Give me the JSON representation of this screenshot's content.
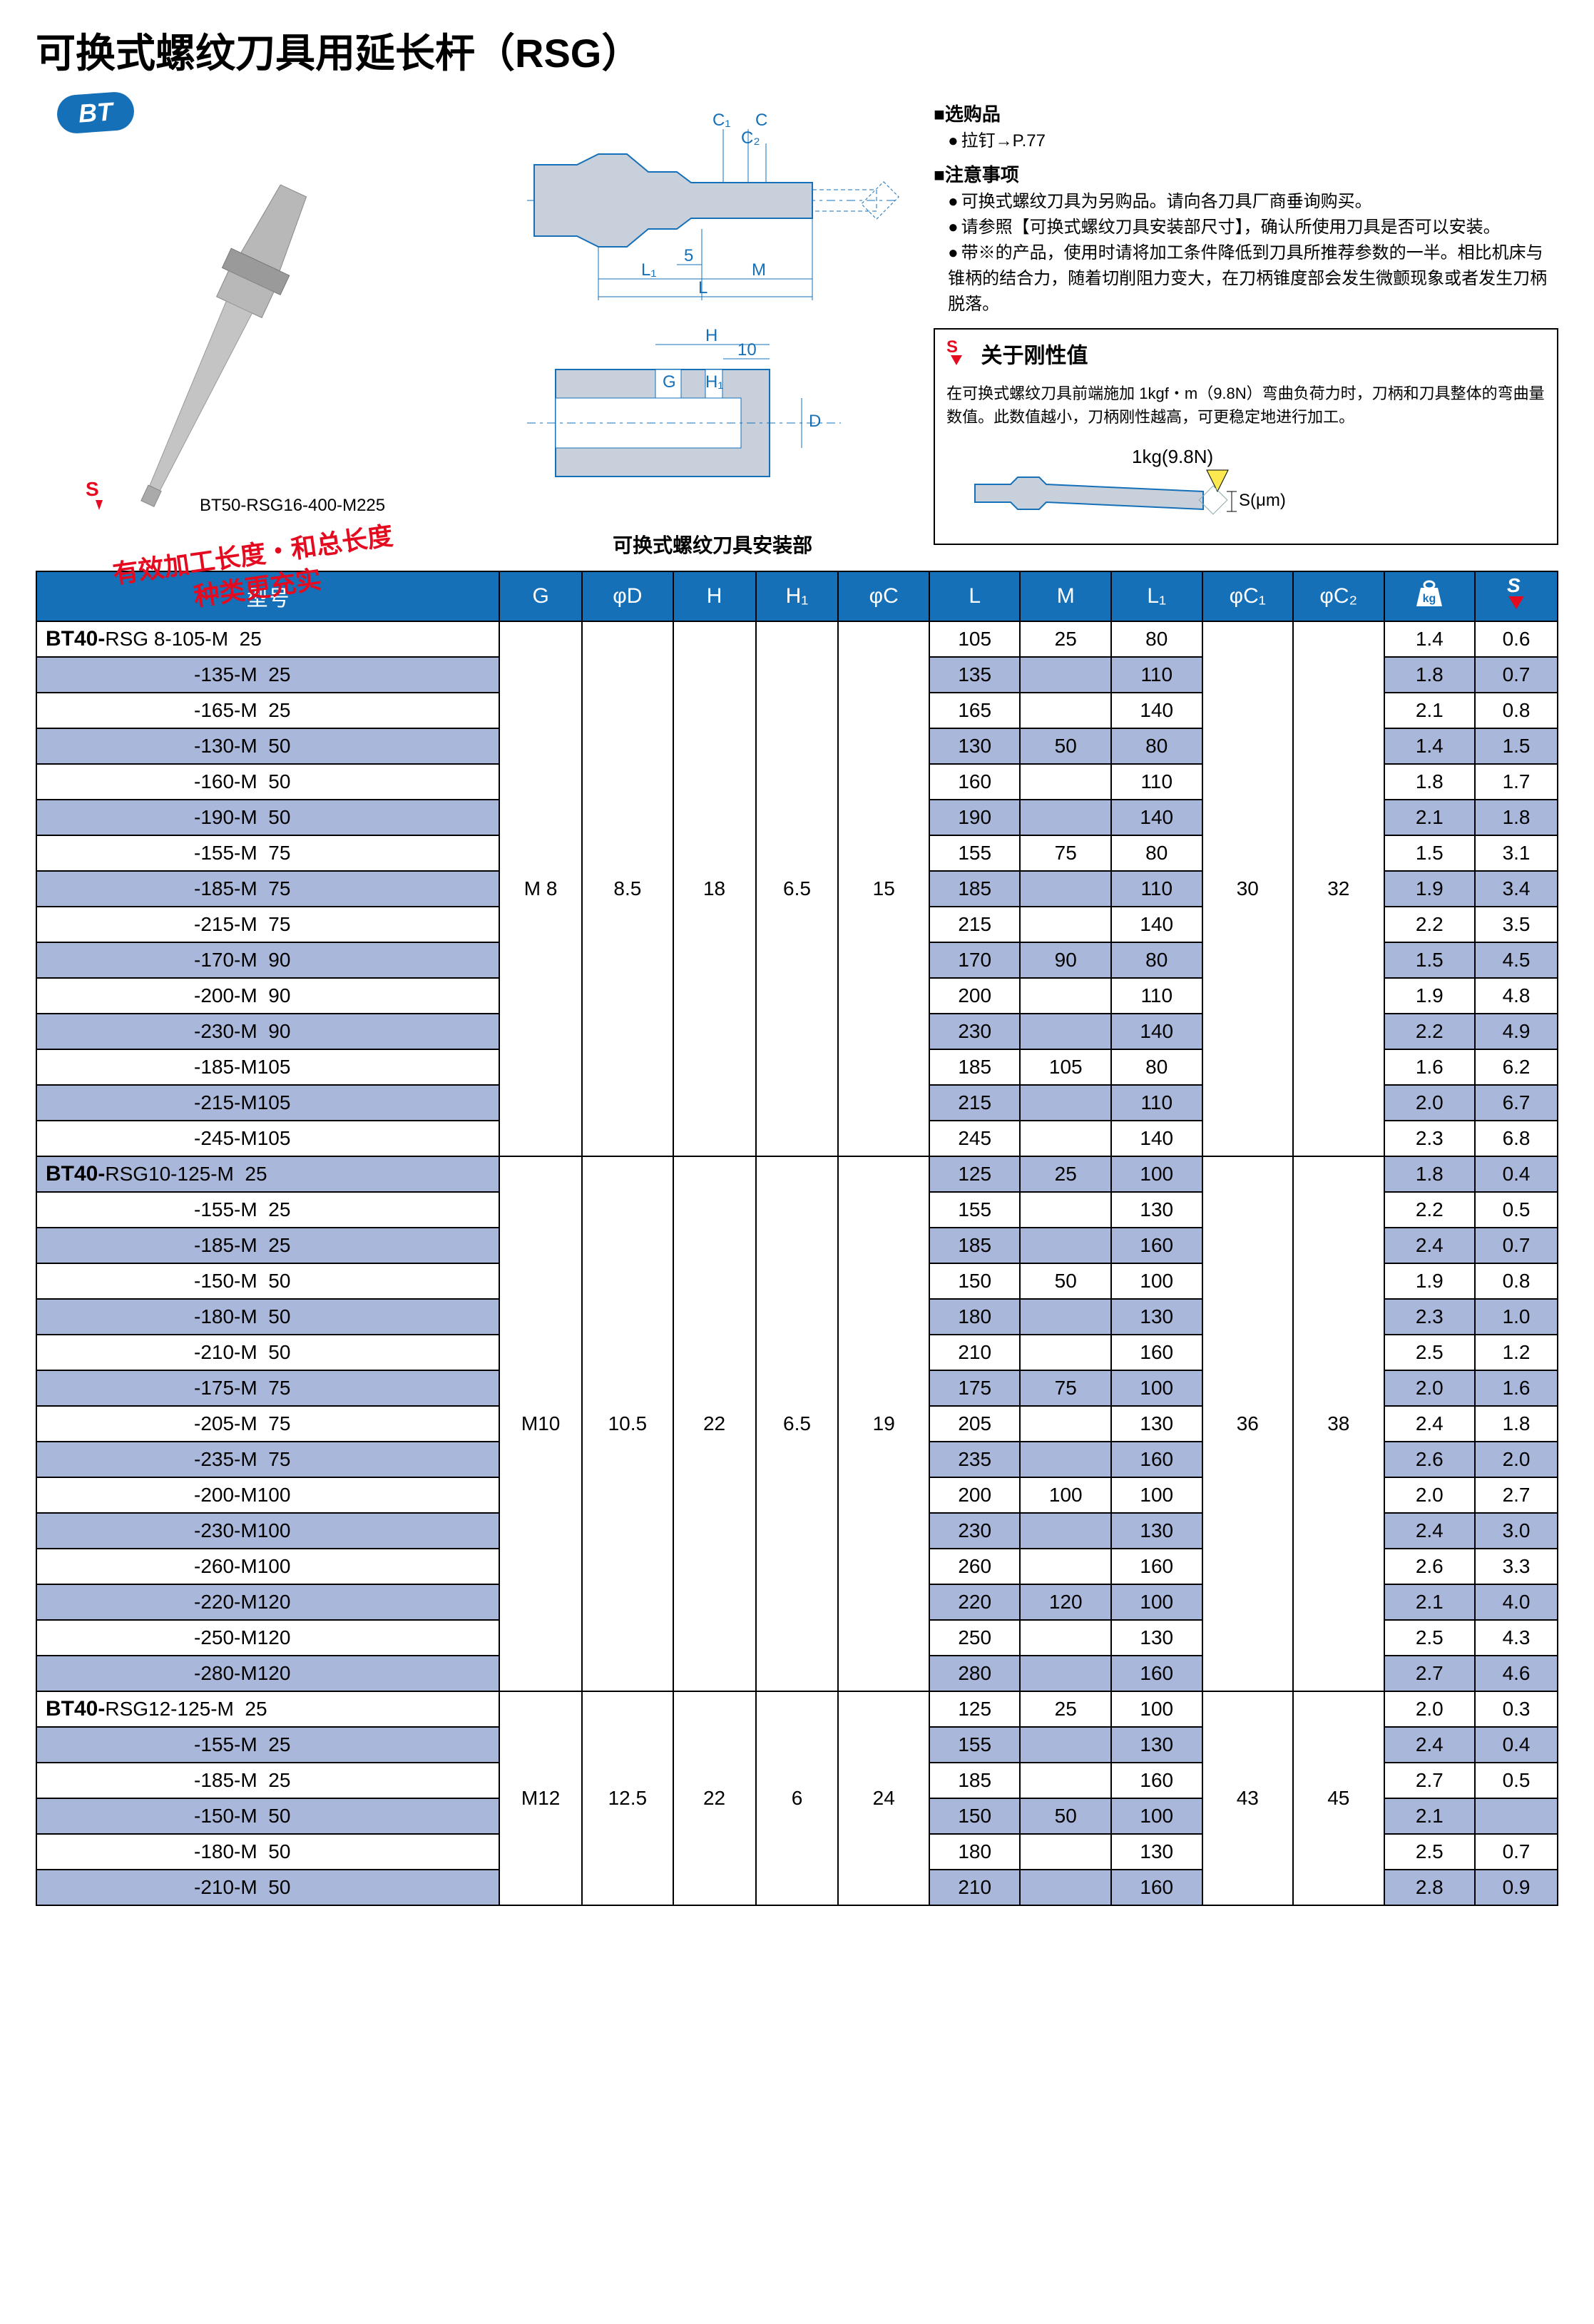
{
  "title": "可换式螺纹刀具用延长杆（RSG）",
  "bt_badge": "BT",
  "photo_label": "BT50-RSG16-400-M225",
  "red_stamp_line1": "有效加工长度・和总长度",
  "red_stamp_line2": "种类更充实",
  "mount_label": "可换式螺纹刀具安装部",
  "opt_title": "■选购品",
  "opt_item": "拉钉→P.77",
  "note_title": "■注意事项",
  "notes": [
    "可换式螺纹刀具为另购品。请向各刀具厂商垂询购买。",
    "请参照【可换式螺纹刀具安装部尺寸】，确认所使用刀具是否可以安装。",
    "带※的产品，使用时请将加工条件降低到刀具所推荐参数的一半。相比机床与锥柄的结合力，随着切削阻力变大，在刀柄锥度部会发生微颤现象或者发生刀柄脱落。"
  ],
  "rigidity_title": "关于刚性值",
  "rigidity_text": "在可换式螺纹刀具前端施加 1kgf・m（9.8N）弯曲负荷力时，刀柄和刀具整体的弯曲量数值。此数值越小，刀柄刚性越高，可更稳定地进行加工。",
  "rigidity_force": "1kg(9.8N)",
  "rigidity_s": "S(μm)",
  "diagram_labels": {
    "C1": "C₁",
    "C": "C",
    "C2": "C₂",
    "five": "5",
    "L1": "L₁",
    "M": "M",
    "L": "L",
    "H": "H",
    "ten": "10",
    "G": "G",
    "H1": "H₁",
    "D": "D"
  },
  "headers": [
    "型号",
    "G",
    "φD",
    "H",
    "H₁",
    "φC",
    "L",
    "M",
    "L₁",
    "φC₁",
    "φC₂",
    "kg",
    "S"
  ],
  "colors": {
    "header_bg": "#1570b8",
    "stripe_bg": "#a9b8da",
    "accent_red": "#e40b20"
  },
  "groups": [
    {
      "prefix": "BT40-",
      "base": "RSG 8",
      "common": {
        "G": "M 8",
        "phiD": "8.5",
        "H": "18",
        "H1": "6.5",
        "phiC": "15",
        "phiC1": "30",
        "phiC2": "32"
      },
      "rows": [
        {
          "model": "-105-M  25",
          "L": "105",
          "M": "25",
          "L1": "80",
          "kg": "1.4",
          "S": "0.6",
          "first": true
        },
        {
          "model": "-135-M  25",
          "L": "135",
          "M": "",
          "L1": "110",
          "kg": "1.8",
          "S": "0.7"
        },
        {
          "model": "-165-M  25",
          "L": "165",
          "M": "",
          "L1": "140",
          "kg": "2.1",
          "S": "0.8"
        },
        {
          "model": "-130-M  50",
          "L": "130",
          "M": "50",
          "L1": "80",
          "kg": "1.4",
          "S": "1.5"
        },
        {
          "model": "-160-M  50",
          "L": "160",
          "M": "",
          "L1": "110",
          "kg": "1.8",
          "S": "1.7"
        },
        {
          "model": "-190-M  50",
          "L": "190",
          "M": "",
          "L1": "140",
          "kg": "2.1",
          "S": "1.8"
        },
        {
          "model": "-155-M  75",
          "L": "155",
          "M": "75",
          "L1": "80",
          "kg": "1.5",
          "S": "3.1"
        },
        {
          "model": "-185-M  75",
          "L": "185",
          "M": "",
          "L1": "110",
          "kg": "1.9",
          "S": "3.4"
        },
        {
          "model": "-215-M  75",
          "L": "215",
          "M": "",
          "L1": "140",
          "kg": "2.2",
          "S": "3.5"
        },
        {
          "model": "-170-M  90",
          "L": "170",
          "M": "90",
          "L1": "80",
          "kg": "1.5",
          "S": "4.5"
        },
        {
          "model": "-200-M  90",
          "L": "200",
          "M": "",
          "L1": "110",
          "kg": "1.9",
          "S": "4.8"
        },
        {
          "model": "-230-M  90",
          "L": "230",
          "M": "",
          "L1": "140",
          "kg": "2.2",
          "S": "4.9"
        },
        {
          "model": "-185-M105",
          "L": "185",
          "M": "105",
          "L1": "80",
          "kg": "1.6",
          "S": "6.2"
        },
        {
          "model": "-215-M105",
          "L": "215",
          "M": "",
          "L1": "110",
          "kg": "2.0",
          "S": "6.7"
        },
        {
          "model": "-245-M105",
          "L": "245",
          "M": "",
          "L1": "140",
          "kg": "2.3",
          "S": "6.8"
        }
      ]
    },
    {
      "prefix": "BT40-",
      "base": "RSG10",
      "common": {
        "G": "M10",
        "phiD": "10.5",
        "H": "22",
        "H1": "6.5",
        "phiC": "19",
        "phiC1": "36",
        "phiC2": "38"
      },
      "rows": [
        {
          "model": "-125-M  25",
          "L": "125",
          "M": "25",
          "L1": "100",
          "kg": "1.8",
          "S": "0.4",
          "first": true
        },
        {
          "model": "-155-M  25",
          "L": "155",
          "M": "",
          "L1": "130",
          "kg": "2.2",
          "S": "0.5"
        },
        {
          "model": "-185-M  25",
          "L": "185",
          "M": "",
          "L1": "160",
          "kg": "2.4",
          "S": "0.7"
        },
        {
          "model": "-150-M  50",
          "L": "150",
          "M": "50",
          "L1": "100",
          "kg": "1.9",
          "S": "0.8"
        },
        {
          "model": "-180-M  50",
          "L": "180",
          "M": "",
          "L1": "130",
          "kg": "2.3",
          "S": "1.0"
        },
        {
          "model": "-210-M  50",
          "L": "210",
          "M": "",
          "L1": "160",
          "kg": "2.5",
          "S": "1.2"
        },
        {
          "model": "-175-M  75",
          "L": "175",
          "M": "75",
          "L1": "100",
          "kg": "2.0",
          "S": "1.6"
        },
        {
          "model": "-205-M  75",
          "L": "205",
          "M": "",
          "L1": "130",
          "kg": "2.4",
          "S": "1.8"
        },
        {
          "model": "-235-M  75",
          "L": "235",
          "M": "",
          "L1": "160",
          "kg": "2.6",
          "S": "2.0"
        },
        {
          "model": "-200-M100",
          "L": "200",
          "M": "100",
          "L1": "100",
          "kg": "2.0",
          "S": "2.7"
        },
        {
          "model": "-230-M100",
          "L": "230",
          "M": "",
          "L1": "130",
          "kg": "2.4",
          "S": "3.0"
        },
        {
          "model": "-260-M100",
          "L": "260",
          "M": "",
          "L1": "160",
          "kg": "2.6",
          "S": "3.3"
        },
        {
          "model": "-220-M120",
          "L": "220",
          "M": "120",
          "L1": "100",
          "kg": "2.1",
          "S": "4.0"
        },
        {
          "model": "-250-M120",
          "L": "250",
          "M": "",
          "L1": "130",
          "kg": "2.5",
          "S": "4.3"
        },
        {
          "model": "-280-M120",
          "L": "280",
          "M": "",
          "L1": "160",
          "kg": "2.7",
          "S": "4.6"
        }
      ]
    },
    {
      "prefix": "BT40-",
      "base": "RSG12",
      "common": {
        "G": "M12",
        "phiD": "12.5",
        "H": "22",
        "H1": "6",
        "phiC": "24",
        "phiC1": "43",
        "phiC2": "45"
      },
      "rows": [
        {
          "model": "-125-M  25",
          "L": "125",
          "M": "25",
          "L1": "100",
          "kg": "2.0",
          "S": "0.3",
          "first": true
        },
        {
          "model": "-155-M  25",
          "L": "155",
          "M": "",
          "L1": "130",
          "kg": "2.4",
          "S": "0.4"
        },
        {
          "model": "-185-M  25",
          "L": "185",
          "M": "",
          "L1": "160",
          "kg": "2.7",
          "S": "0.5"
        },
        {
          "model": "-150-M  50",
          "L": "150",
          "M": "50",
          "L1": "100",
          "kg": "2.1",
          "S": ""
        },
        {
          "model": "-180-M  50",
          "L": "180",
          "M": "",
          "L1": "130",
          "kg": "2.5",
          "S": "0.7"
        },
        {
          "model": "-210-M  50",
          "L": "210",
          "M": "",
          "L1": "160",
          "kg": "2.8",
          "S": "0.9"
        }
      ]
    }
  ],
  "col_widths": {
    "model": 560,
    "G": 100,
    "phiD": 110,
    "H": 100,
    "H1": 100,
    "phiC": 110,
    "L": 110,
    "M": 110,
    "L1": 110,
    "phiC1": 110,
    "phiC2": 110,
    "kg": 110,
    "S": 100
  }
}
